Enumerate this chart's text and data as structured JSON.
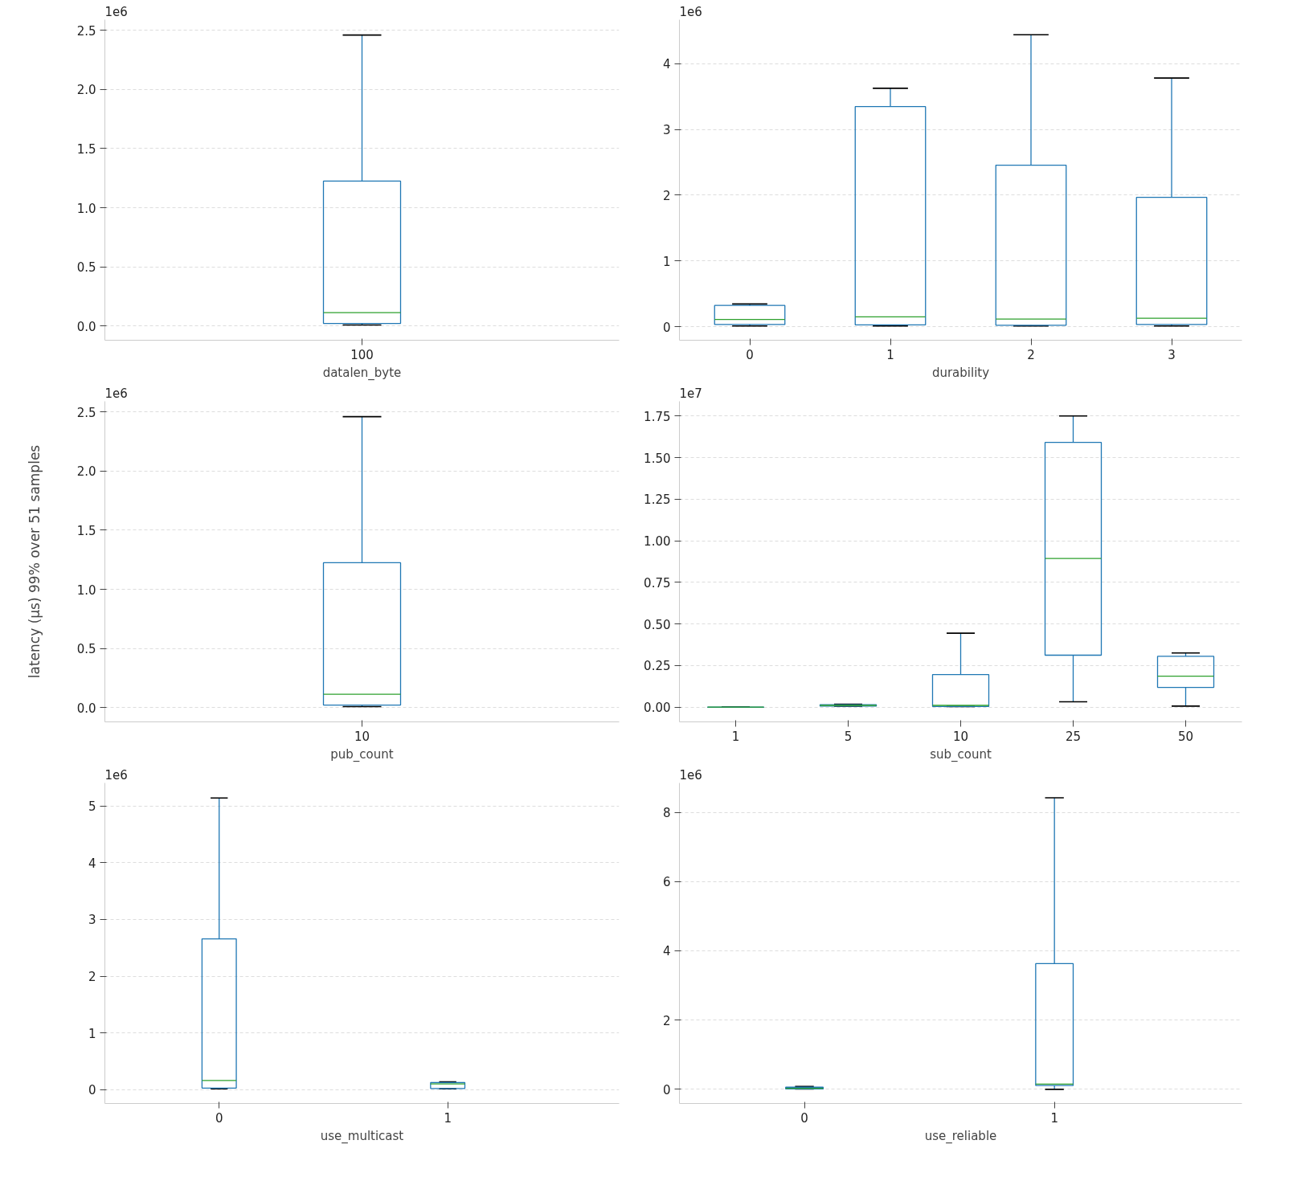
{
  "chart_data": [
    {
      "type": "box",
      "xlabel": "datalen_byte",
      "categories": [
        "100"
      ],
      "color": "#1f77b4",
      "annotations": [
        "1e6"
      ],
      "boxes": [
        {
          "low": 0.009,
          "q1": 0.022,
          "median": 0.114,
          "q3": 1.225,
          "high": 2.46
        }
      ],
      "ylim": [
        -0.12,
        2.59
      ],
      "yticks": [
        {
          "value": 0,
          "label": "0.0"
        },
        {
          "value": 0.5,
          "label": "0.5"
        },
        {
          "value": 1,
          "label": "1.0"
        },
        {
          "value": 1.5,
          "label": "1.5"
        },
        {
          "value": 2,
          "label": "2.0"
        },
        {
          "value": 2.5,
          "label": "2.5"
        }
      ],
      "grid": "y"
    },
    {
      "type": "box",
      "xlabel": "durability",
      "categories": [
        "0",
        "1",
        "2",
        "3"
      ],
      "color": "#1f77b4",
      "annotations": [
        "1e6"
      ],
      "boxes": [
        {
          "low": 0.011,
          "q1": 0.033,
          "median": 0.111,
          "q3": 0.323,
          "high": 0.345
        },
        {
          "low": 0.011,
          "q1": 0.028,
          "median": 0.15,
          "q3": 3.348,
          "high": 3.627
        },
        {
          "low": 0.011,
          "q1": 0.022,
          "median": 0.117,
          "q3": 2.457,
          "high": 4.44
        },
        {
          "low": 0.011,
          "q1": 0.033,
          "median": 0.128,
          "q3": 1.967,
          "high": 3.783
        }
      ],
      "ylim": [
        -0.206,
        4.67
      ],
      "yticks": [
        0,
        1,
        2,
        3,
        4
      ],
      "grid": "y"
    },
    {
      "type": "box",
      "ylabel": "latency (µs) 99% over 51 samples",
      "xlabel": "pub_count",
      "categories": [
        "10"
      ],
      "color": "#1f77b4",
      "annotations": [
        "1e6"
      ],
      "boxes": [
        {
          "low": 0.009,
          "q1": 0.022,
          "median": 0.114,
          "q3": 1.225,
          "high": 2.46
        }
      ],
      "ylim": [
        -0.12,
        2.59
      ],
      "yticks": [
        {
          "value": 0,
          "label": "0.0"
        },
        {
          "value": 0.5,
          "label": "0.5"
        },
        {
          "value": 1,
          "label": "1.0"
        },
        {
          "value": 1.5,
          "label": "1.5"
        },
        {
          "value": 2,
          "label": "2.0"
        },
        {
          "value": 2.5,
          "label": "2.5"
        }
      ],
      "grid": "y"
    },
    {
      "type": "box",
      "xlabel": "sub_count",
      "categories": [
        "1",
        "5",
        "10",
        "25",
        "50"
      ],
      "color": "#1f77b4",
      "annotations": [
        "1e7"
      ],
      "boxes": [
        {
          "low": 0.0001,
          "q1": 0.0002,
          "median": 0.0003,
          "q3": 0.0004,
          "high": 0.0005
        },
        {
          "low": 0.0066,
          "q1": 0.0066,
          "median": 0.011,
          "q3": 0.0154,
          "high": 0.0176
        },
        {
          "low": 0.0044,
          "q1": 0.0044,
          "median": 0.011,
          "q3": 0.196,
          "high": 0.4446
        },
        {
          "low": 0.033,
          "q1": 0.3126,
          "median": 0.894,
          "q3": 1.591,
          "high": 1.75
        },
        {
          "low": 0.0066,
          "q1": 0.119,
          "median": 0.187,
          "q3": 0.306,
          "high": 0.326
        }
      ],
      "ylim": [
        -0.088,
        1.838
      ],
      "yticks": [
        {
          "value": 0,
          "label": "0.00"
        },
        {
          "value": 0.25,
          "label": "0.25"
        },
        {
          "value": 0.5,
          "label": "0.50"
        },
        {
          "value": 0.75,
          "label": "0.75"
        },
        {
          "value": 1,
          "label": "1.00"
        },
        {
          "value": 1.25,
          "label": "1.25"
        },
        {
          "value": 1.5,
          "label": "1.50"
        },
        {
          "value": 1.75,
          "label": "1.75"
        }
      ],
      "grid": "y"
    },
    {
      "type": "box",
      "xlabel": "use_multicast",
      "categories": [
        "0",
        "1"
      ],
      "color": "#1f77b4",
      "annotations": [
        "1e6"
      ],
      "boxes": [
        {
          "low": 0.015,
          "q1": 0.029,
          "median": 0.162,
          "q3": 2.658,
          "high": 5.14
        },
        {
          "low": 0.015,
          "q1": 0.022,
          "median": 0.103,
          "q3": 0.125,
          "high": 0.14
        }
      ],
      "ylim": [
        -0.243,
        5.405
      ],
      "yticks": [
        0,
        1,
        2,
        3,
        4,
        5
      ],
      "grid": "y"
    },
    {
      "type": "box",
      "xlabel": "use_reliable",
      "categories": [
        "0",
        "1"
      ],
      "color": "#1f77b4",
      "annotations": [
        "1e6"
      ],
      "boxes": [
        {
          "low": 0.01,
          "q1": 0.01,
          "median": 0.03,
          "q3": 0.06,
          "high": 0.08
        },
        {
          "low": 0,
          "q1": 0.11,
          "median": 0.15,
          "q3": 3.63,
          "high": 8.42
        }
      ],
      "ylim": [
        -0.41,
        8.85
      ],
      "yticks": [
        0,
        2,
        4,
        6,
        8
      ],
      "grid": "y"
    }
  ]
}
